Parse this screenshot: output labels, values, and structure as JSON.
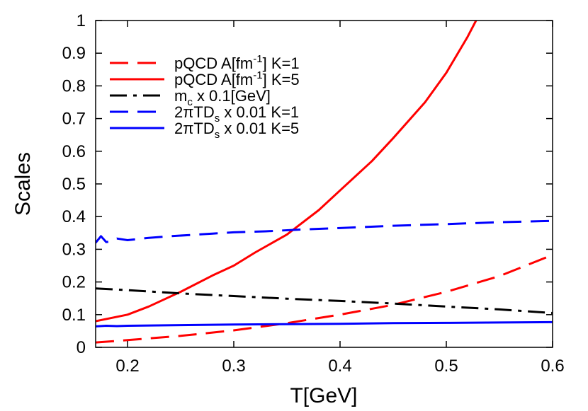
{
  "chart_data": {
    "type": "line",
    "xlabel": "T[GeV]",
    "ylabel": "Scales",
    "xlim": [
      0.17,
      0.6
    ],
    "ylim": [
      0,
      1
    ],
    "xticks": [
      "0.2",
      "0.3",
      "0.4",
      "0.5",
      "0.6"
    ],
    "yticks": [
      "0",
      "0.1",
      "0.2",
      "0.3",
      "0.4",
      "0.5",
      "0.6",
      "0.7",
      "0.8",
      "0.9",
      "1"
    ],
    "legend_position": "top-left",
    "grid": false,
    "series": [
      {
        "label_main": "pQCD A[fm",
        "label_sup": "-1",
        "label_end": "] K=1",
        "color": "#ff0000",
        "dash": "dash",
        "x": [
          0.17,
          0.2,
          0.25,
          0.3,
          0.35,
          0.4,
          0.45,
          0.5,
          0.55,
          0.6
        ],
        "y": [
          0.015,
          0.022,
          0.035,
          0.052,
          0.074,
          0.1,
          0.13,
          0.17,
          0.218,
          0.283
        ]
      },
      {
        "label_main": "pQCD A[fm",
        "label_sup": "-1",
        "label_end": "] K=5",
        "color": "#ff0000",
        "dash": "solid",
        "x": [
          0.17,
          0.2,
          0.22,
          0.25,
          0.28,
          0.3,
          0.32,
          0.35,
          0.38,
          0.4,
          0.43,
          0.45,
          0.48,
          0.5,
          0.52,
          0.528
        ],
        "y": [
          0.08,
          0.1,
          0.125,
          0.17,
          0.22,
          0.25,
          0.29,
          0.345,
          0.42,
          0.48,
          0.57,
          0.64,
          0.75,
          0.84,
          0.95,
          1.0
        ]
      },
      {
        "label_main": "m",
        "label_sub": "c",
        "label_end": " x 0.1[GeV]",
        "color": "#000000",
        "dash": "dashdot",
        "x": [
          0.17,
          0.2,
          0.25,
          0.3,
          0.35,
          0.4,
          0.45,
          0.5,
          0.55,
          0.6
        ],
        "y": [
          0.18,
          0.175,
          0.165,
          0.157,
          0.149,
          0.142,
          0.134,
          0.125,
          0.116,
          0.105
        ]
      },
      {
        "label_main": "2πTD",
        "label_sub": "s",
        "label_end": " x 0.01 K=1",
        "color": "#0000ff",
        "dash": "dash",
        "x": [
          0.17,
          0.175,
          0.18,
          0.185,
          0.19,
          0.2,
          0.22,
          0.24,
          0.26,
          0.28,
          0.3,
          0.33,
          0.36,
          0.4,
          0.45,
          0.5,
          0.55,
          0.6
        ],
        "y": [
          0.32,
          0.34,
          0.322,
          0.325,
          0.333,
          0.328,
          0.335,
          0.34,
          0.344,
          0.348,
          0.352,
          0.355,
          0.36,
          0.365,
          0.372,
          0.377,
          0.383,
          0.387
        ]
      },
      {
        "label_main": "2πTD",
        "label_sub": "s",
        "label_end": " x 0.01 K=5",
        "color": "#0000ff",
        "dash": "solid",
        "x": [
          0.17,
          0.18,
          0.19,
          0.2,
          0.25,
          0.3,
          0.35,
          0.4,
          0.45,
          0.5,
          0.55,
          0.6
        ],
        "y": [
          0.064,
          0.066,
          0.065,
          0.066,
          0.068,
          0.07,
          0.071,
          0.072,
          0.074,
          0.075,
          0.076,
          0.077
        ]
      }
    ]
  }
}
